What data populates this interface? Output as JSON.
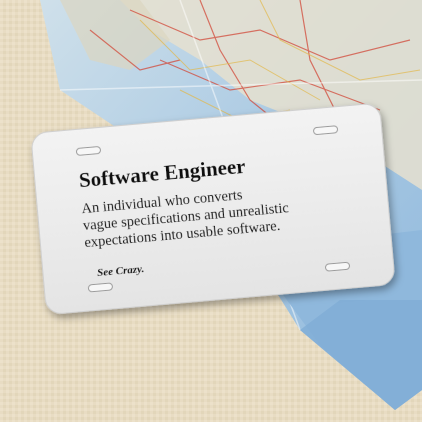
{
  "plate": {
    "title": "Software Engineer",
    "lines": [
      "An individual who converts",
      "vague specifications and unrealistic",
      "expectations into usable software."
    ],
    "signature": "See Crazy."
  },
  "colors": {
    "burlap": "#e8dcc3",
    "map_water": "#9ec3e2",
    "map_land": "#e6e0cf",
    "plate": "#eeeeee",
    "text": "#111111"
  }
}
